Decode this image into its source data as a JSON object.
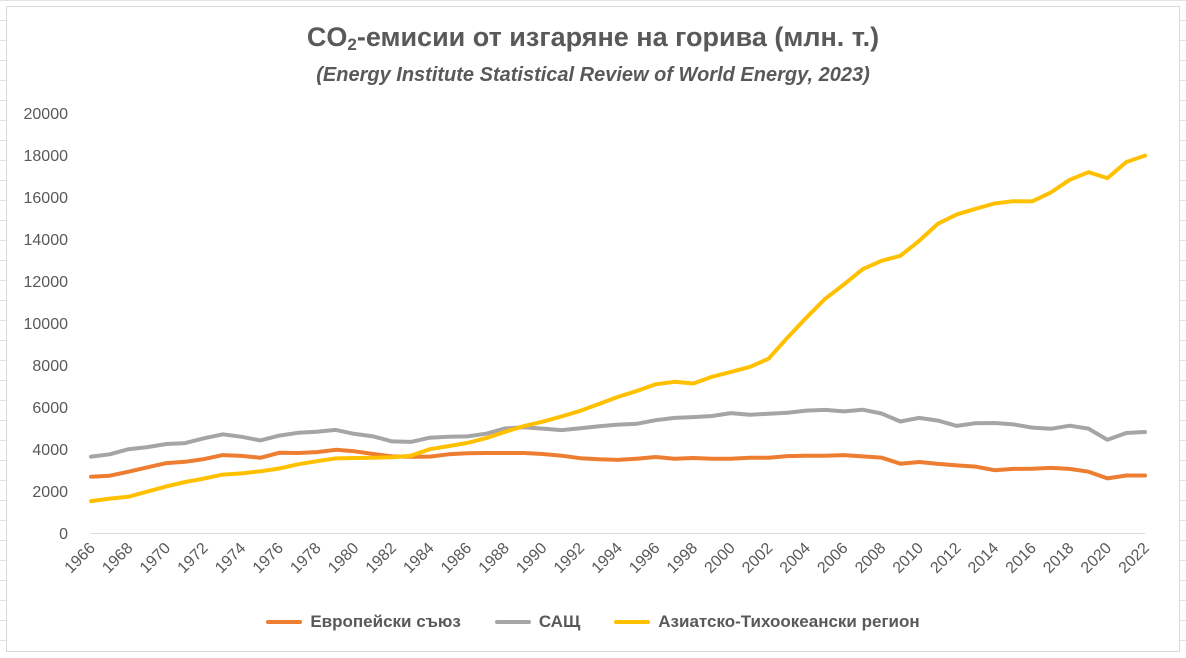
{
  "chart_data": {
    "type": "line",
    "title_main": "CO",
    "title_sub": "2",
    "title_rest": "-емисии от изгаряне на горива (млн. т.)",
    "subtitle": "(Energy Institute Statistical Review of World Energy, 2023)",
    "ylim": [
      0,
      20000
    ],
    "yticks": [
      0,
      2000,
      4000,
      6000,
      8000,
      10000,
      12000,
      14000,
      16000,
      18000,
      20000
    ],
    "xticks": [
      1966,
      1968,
      1970,
      1972,
      1974,
      1976,
      1978,
      1980,
      1982,
      1984,
      1986,
      1988,
      1990,
      1992,
      1994,
      1996,
      1998,
      2000,
      2002,
      2004,
      2006,
      2008,
      2010,
      2012,
      2014,
      2016,
      2018,
      2020,
      2022
    ],
    "x": [
      1966,
      1967,
      1968,
      1969,
      1970,
      1971,
      1972,
      1973,
      1974,
      1975,
      1976,
      1977,
      1978,
      1979,
      1980,
      1981,
      1982,
      1983,
      1984,
      1985,
      1986,
      1987,
      1988,
      1989,
      1990,
      1991,
      1992,
      1993,
      1994,
      1995,
      1996,
      1997,
      1998,
      1999,
      2000,
      2001,
      2002,
      2003,
      2004,
      2005,
      2006,
      2007,
      2008,
      2009,
      2010,
      2011,
      2012,
      2013,
      2014,
      2015,
      2016,
      2017,
      2018,
      2019,
      2020,
      2021,
      2022
    ],
    "grid": false,
    "legend_position": "bottom",
    "series": [
      {
        "name": "Европейски съюз",
        "color": "#ed7d31",
        "values": [
          2680,
          2730,
          2920,
          3130,
          3330,
          3390,
          3520,
          3710,
          3670,
          3580,
          3820,
          3810,
          3850,
          3960,
          3890,
          3760,
          3650,
          3630,
          3640,
          3750,
          3800,
          3810,
          3810,
          3810,
          3760,
          3680,
          3560,
          3510,
          3480,
          3540,
          3620,
          3540,
          3570,
          3540,
          3540,
          3580,
          3580,
          3660,
          3680,
          3680,
          3710,
          3650,
          3590,
          3300,
          3380,
          3290,
          3220,
          3160,
          2990,
          3050,
          3060,
          3100,
          3050,
          2920,
          2600,
          2740,
          2740
        ]
      },
      {
        "name": "САЩ",
        "color": "#a5a5a5",
        "values": [
          3640,
          3750,
          3990,
          4090,
          4240,
          4280,
          4510,
          4700,
          4580,
          4410,
          4640,
          4770,
          4820,
          4910,
          4720,
          4600,
          4360,
          4340,
          4540,
          4580,
          4600,
          4730,
          4980,
          5040,
          4970,
          4900,
          4990,
          5080,
          5160,
          5200,
          5370,
          5480,
          5520,
          5570,
          5710,
          5630,
          5680,
          5730,
          5830,
          5860,
          5790,
          5870,
          5690,
          5310,
          5480,
          5350,
          5100,
          5230,
          5240,
          5170,
          5020,
          4960,
          5110,
          4970,
          4440,
          4760,
          4810
        ]
      },
      {
        "name": "Азиатско-Тихоокеански регион",
        "color": "#ffc000",
        "values": [
          1520,
          1640,
          1730,
          1970,
          2220,
          2430,
          2590,
          2780,
          2840,
          2940,
          3070,
          3270,
          3420,
          3550,
          3570,
          3580,
          3610,
          3680,
          3990,
          4140,
          4290,
          4520,
          4820,
          5090,
          5300,
          5550,
          5820,
          6150,
          6480,
          6760,
          7080,
          7200,
          7120,
          7440,
          7670,
          7910,
          8300,
          9300,
          10250,
          11150,
          11840,
          12560,
          12960,
          13200,
          13910,
          14730,
          15170,
          15440,
          15690,
          15800,
          15790,
          16220,
          16820,
          17180,
          16900,
          17660,
          17970
        ]
      }
    ]
  }
}
